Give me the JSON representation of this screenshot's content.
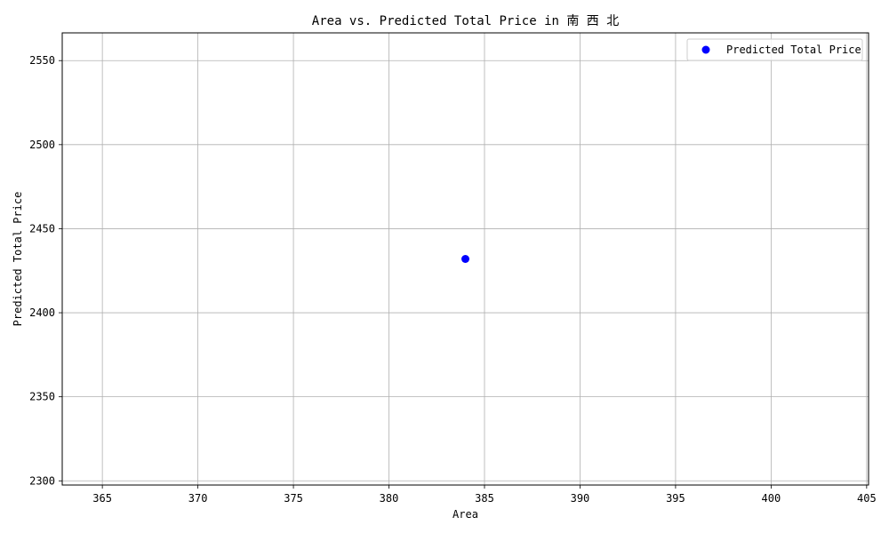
{
  "chart_data": {
    "type": "scatter",
    "title": "Area vs. Predicted Total Price in 南 西 北",
    "xlabel": "Area",
    "ylabel": "Predicted Total Price",
    "xlim": [
      362.9,
      405.1
    ],
    "ylim": [
      2297.5,
      2566.5
    ],
    "xticks": [
      365,
      370,
      375,
      380,
      385,
      390,
      395,
      400,
      405
    ],
    "yticks": [
      2300,
      2350,
      2400,
      2450,
      2500,
      2550
    ],
    "grid": true,
    "legend_position": "top-right",
    "series": [
      {
        "name": "Predicted Total Price",
        "color": "#0000ff",
        "x": [
          384
        ],
        "y": [
          2432
        ]
      }
    ]
  }
}
